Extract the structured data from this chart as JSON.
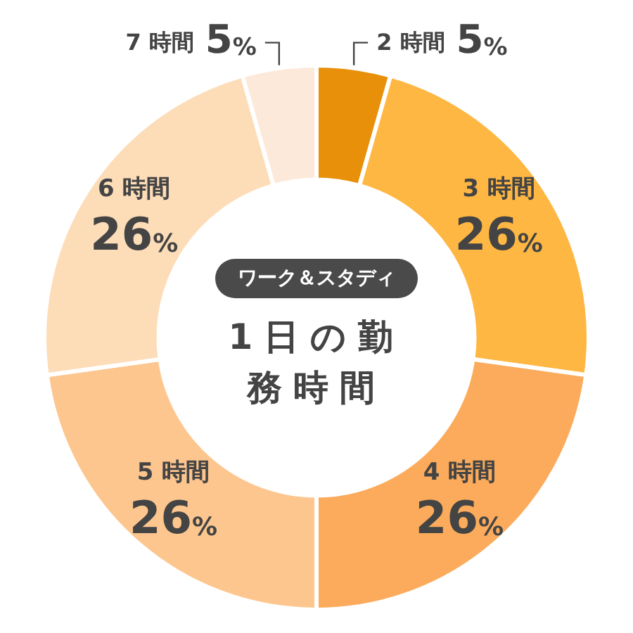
{
  "chart_data": {
    "type": "donut",
    "title": "1日の勤務時間",
    "subtitle": "ワーク＆スタディ",
    "categories": [
      "2 時間",
      "3 時間",
      "4 時間",
      "5 時間",
      "6 時間",
      "7 時間"
    ],
    "values": [
      5,
      26,
      26,
      26,
      26,
      5
    ],
    "value_labels": [
      "5%",
      "26%",
      "26%",
      "26%",
      "26%",
      "5%"
    ],
    "colors": [
      "#e8900a",
      "#ffb743",
      "#fbab5b",
      "#fdc68e",
      "#fddcb8",
      "#fde9da"
    ],
    "legend": false
  }
}
